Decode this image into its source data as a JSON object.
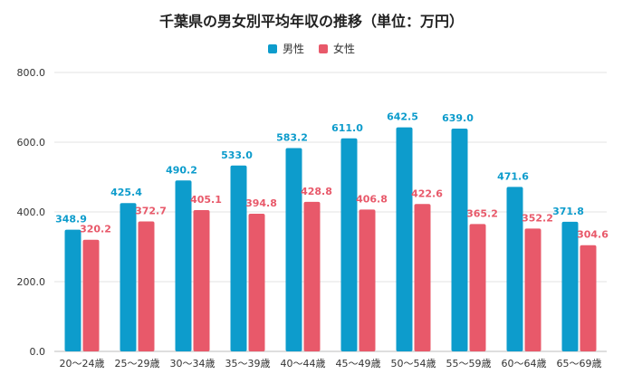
{
  "chart_data": {
    "type": "bar",
    "title": "千葉県の男女別平均年収の推移（単位：万円）",
    "xlabel": "",
    "ylabel": "",
    "ylim": [
      0,
      800
    ],
    "yticks": [
      "0.0",
      "200.0",
      "400.0",
      "600.0",
      "800.0"
    ],
    "grid": true,
    "legend_position": "top-center",
    "categories": [
      "20〜24歳",
      "25〜29歳",
      "30〜34歳",
      "35〜39歳",
      "40〜44歳",
      "45〜49歳",
      "50〜54歳",
      "55〜59歳",
      "60〜64歳",
      "65〜69歳"
    ],
    "series": [
      {
        "name": "男性",
        "color": "#0d9ccc",
        "values": [
          348.9,
          425.4,
          490.2,
          533.0,
          583.2,
          611.0,
          642.5,
          639.0,
          471.6,
          371.8
        ],
        "labels": [
          "348.9",
          "425.4",
          "490.2",
          "533.0",
          "583.2",
          "611.0",
          "642.5",
          "639.0",
          "471.6",
          "371.8"
        ]
      },
      {
        "name": "女性",
        "color": "#e8596a",
        "values": [
          320.2,
          372.7,
          405.1,
          394.8,
          428.8,
          406.8,
          422.6,
          365.2,
          352.2,
          304.6
        ],
        "labels": [
          "320.2",
          "372.7",
          "405.1",
          "394.8",
          "428.8",
          "406.8",
          "422.6",
          "365.2",
          "352.2",
          "304.6"
        ]
      }
    ]
  }
}
